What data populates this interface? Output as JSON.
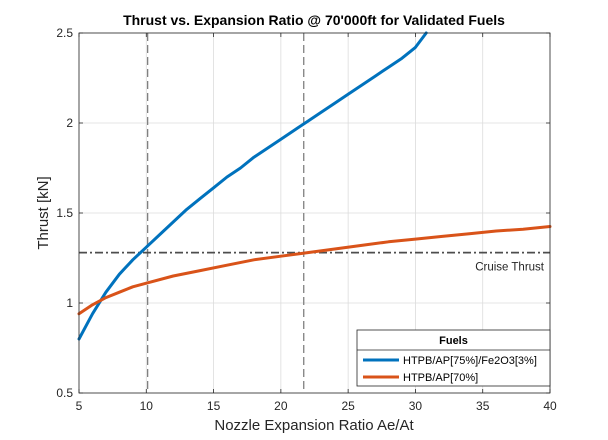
{
  "chart_data": {
    "type": "line",
    "title": "Thrust vs. Expansion Ratio @ 70'000ft for Validated Fuels",
    "xlabel": "Nozzle Expansion Ratio Ae/At",
    "ylabel": "Thrust [kN]",
    "xlim": [
      5,
      40
    ],
    "ylim": [
      0.5,
      2.5
    ],
    "xticks": [
      5,
      10,
      15,
      20,
      25,
      30,
      35,
      40
    ],
    "yticks": [
      0.5,
      1,
      1.5,
      2,
      2.5
    ],
    "xtick_labels": [
      "5",
      "10",
      "15",
      "20",
      "25",
      "30",
      "35",
      "40"
    ],
    "ytick_labels": [
      "0.5",
      "1",
      "1.5",
      "2",
      "2.5"
    ],
    "grid": true,
    "legend_title": "Fuels",
    "legend_location": "bottom-right",
    "series": [
      {
        "name": "HTPB/AP[75%]/Fe2O3[3%]",
        "color": "#0072BD",
        "x": [
          5,
          6,
          7,
          8,
          9,
          10,
          11,
          12,
          13,
          14,
          15,
          16,
          17,
          18,
          19,
          20,
          21,
          22,
          23,
          24,
          25,
          26,
          27,
          28,
          29,
          30,
          30.8
        ],
        "y": [
          0.8,
          0.94,
          1.06,
          1.16,
          1.24,
          1.31,
          1.38,
          1.45,
          1.52,
          1.58,
          1.64,
          1.7,
          1.75,
          1.81,
          1.86,
          1.91,
          1.96,
          2.01,
          2.06,
          2.11,
          2.16,
          2.21,
          2.26,
          2.31,
          2.36,
          2.42,
          2.5
        ]
      },
      {
        "name": "HTPB/AP[70%]",
        "color": "#D95319",
        "x": [
          5,
          6,
          7,
          8,
          9,
          10,
          12,
          14,
          16,
          18,
          20,
          22,
          24,
          26,
          28,
          30,
          32,
          34,
          36,
          38,
          40
        ],
        "y": [
          0.94,
          0.99,
          1.03,
          1.06,
          1.09,
          1.11,
          1.15,
          1.18,
          1.21,
          1.24,
          1.26,
          1.28,
          1.3,
          1.32,
          1.34,
          1.355,
          1.37,
          1.385,
          1.4,
          1.41,
          1.425
        ]
      }
    ],
    "reference_lines": {
      "horizontal": {
        "y": 1.28,
        "label": "Cruise Thrust",
        "color": "#4D4D4D"
      },
      "vertical": [
        {
          "x": 10.1,
          "color": "#808080"
        },
        {
          "x": 21.7,
          "color": "#808080"
        }
      ]
    }
  }
}
